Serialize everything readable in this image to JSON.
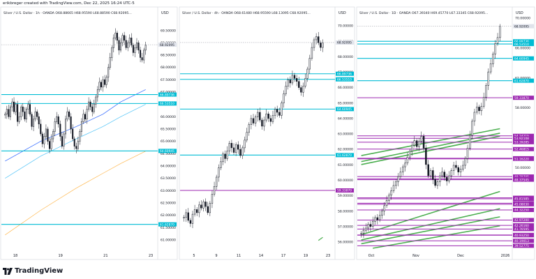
{
  "credit": "erikbreger created with TradingView.com, Dec 22, 2025 16:24 UTC-5",
  "brand": "TradingView",
  "colors": {
    "up": "#089981",
    "down": "#131722",
    "cyan": "#00bcd4",
    "purple": "#9c27b0",
    "green": "#4caf50",
    "blue_ma": "#2962ff",
    "lightblue_ma": "#4fc3f7",
    "orange_ma": "#ffb74d",
    "panel_border": "#d1d4dc"
  },
  "chart_data": [
    {
      "type": "candlestick",
      "header": "Silver / U.S. Dollar · 1h · OANDA  O68.88665  H68.95590  L68.88590  C68.92095…",
      "currency": "USD",
      "price_ticks": [
        "69.50000",
        "69.00000",
        "68.50000",
        "68.00000",
        "67.50000",
        "67.00000",
        "66.50000",
        "66.00000",
        "65.50000",
        "65.00000",
        "64.50000",
        "64.00000",
        "63.50000",
        "63.00000",
        "62.50000",
        "62.00000",
        "61.50000",
        "61.00000"
      ],
      "ylim": [
        60.6,
        70.0
      ],
      "x_ticks": [
        "18",
        "19",
        "21",
        "23"
      ],
      "last_price": {
        "label": "68.92095",
        "value": 68.92095
      },
      "levels": [
        {
          "label": "66.89736",
          "value": 66.89736,
          "color": "cyan"
        },
        {
          "label": "66.53510",
          "value": 66.5351,
          "color": "cyan"
        },
        {
          "label": "64.60945",
          "value": 64.60945,
          "color": "cyan"
        },
        {
          "label": "61.62870",
          "value": 61.6287,
          "color": "cyan"
        }
      ],
      "closes": [
        66.1,
        66.3,
        66.0,
        66.4,
        66.6,
        66.2,
        66.5,
        65.8,
        66.0,
        66.4,
        66.2,
        65.9,
        66.3,
        66.5,
        66.1,
        65.6,
        65.9,
        66.2,
        66.0,
        65.7,
        65.3,
        64.9,
        65.2,
        65.5,
        65.0,
        64.7,
        65.1,
        65.4,
        65.8,
        66.0,
        65.7,
        65.2,
        64.8,
        65.3,
        65.9,
        66.2,
        66.0,
        65.5,
        65.1,
        64.8,
        64.7,
        65.0,
        65.4,
        65.8,
        66.1,
        65.9,
        66.3,
        66.6,
        66.4,
        66.2,
        66.5,
        66.8,
        67.1,
        67.4,
        67.2,
        67.5,
        67.3,
        67.6,
        68.0,
        68.4,
        68.8,
        69.2,
        69.4,
        69.1,
        68.7,
        69.0,
        69.3,
        69.1,
        68.8,
        69.0,
        69.2,
        68.9,
        68.6,
        68.8,
        69.0,
        68.7,
        68.4,
        68.3,
        68.7,
        68.9
      ],
      "moving_averages": [
        {
          "name": "blue",
          "color": "blue_ma",
          "values": [
            [
              0,
              64.2
            ],
            [
              20,
              65.0
            ],
            [
              40,
              65.6
            ],
            [
              55,
              66.1
            ],
            [
              65,
              66.6
            ],
            [
              79,
              67.1
            ]
          ]
        },
        {
          "name": "lightblue",
          "color": "lightblue_ma",
          "values": [
            [
              0,
              63.5
            ],
            [
              20,
              64.4
            ],
            [
              40,
              65.1
            ],
            [
              55,
              65.6
            ],
            [
              65,
              66.0
            ],
            [
              79,
              66.5
            ]
          ]
        },
        {
          "name": "orange",
          "color": "orange_ma",
          "values": [
            [
              0,
              61.2
            ],
            [
              20,
              62.2
            ],
            [
              40,
              63.1
            ],
            [
              55,
              63.7
            ],
            [
              65,
              64.1
            ],
            [
              79,
              64.6
            ]
          ]
        }
      ]
    },
    {
      "type": "candlestick",
      "header": "Silver / U.S. Dollar · 4h · OANDA  O68.61480  H68.95590  L68.13095  C68.92095…",
      "currency": "USD",
      "price_ticks": [
        "70.00000",
        "69.00000",
        "68.00000",
        "67.00000",
        "66.00000",
        "65.00000",
        "64.00000",
        "63.00000",
        "62.00000",
        "61.00000",
        "60.00000",
        "59.00000",
        "58.00000",
        "57.00000",
        "56.00000"
      ],
      "ylim": [
        55.5,
        70.5
      ],
      "x_ticks": [
        "5",
        "9",
        "11",
        "14",
        "17",
        "19",
        "23"
      ],
      "last_price": {
        "label": "68.92095",
        "value": 68.92095
      },
      "levels": [
        {
          "label": "66.89736",
          "value": 66.89736,
          "color": "cyan"
        },
        {
          "label": "66.53510",
          "value": 66.5351,
          "color": "cyan"
        },
        {
          "label": "64.60945",
          "value": 64.60945,
          "color": "cyan"
        },
        {
          "label": "61.62870",
          "value": 61.6287,
          "color": "cyan"
        },
        {
          "label": "59.33870",
          "value": 59.3387,
          "color": "purple"
        }
      ],
      "closes": [
        57.6,
        57.9,
        57.4,
        57.2,
        57.8,
        58.1,
        57.9,
        58.4,
        58.2,
        58.6,
        58.3,
        57.9,
        58.5,
        59.1,
        59.6,
        60.2,
        60.8,
        61.2,
        61.7,
        61.4,
        61.9,
        62.4,
        62.1,
        61.8,
        62.3,
        62.0,
        61.6,
        62.1,
        62.6,
        63.1,
        63.6,
        64.0,
        63.7,
        64.1,
        64.4,
        63.9,
        63.5,
        63.9,
        64.3,
        64.0,
        63.8,
        64.2,
        64.6,
        64.4,
        64.2,
        65.0,
        65.6,
        66.1,
        66.5,
        66.3,
        66.8,
        66.6,
        66.4,
        66.0,
        65.7,
        66.1,
        66.6,
        67.2,
        67.9,
        68.6,
        69.1,
        69.3,
        68.9,
        68.6,
        68.9
      ],
      "trendline": [
        [
          62,
          56.1
        ],
        [
          64,
          56.3
        ]
      ]
    },
    {
      "type": "candlestick",
      "header": "Silver / U.S. Dollar · 1D · OANDA  O67.39340  H69.45770  L67.33345  C68.92095…",
      "currency": "USD",
      "price_ticks": [
        "70.00000",
        "66.00000",
        "62.00000",
        "58.00000",
        "54.00000",
        "50.00000",
        "46.00000",
        "42.00000",
        "38.00000",
        "34.00000"
      ],
      "ylim": [
        39.0,
        70.0
      ],
      "x_ticks": [
        "Oct",
        "Nov",
        "Dec",
        "2026"
      ],
      "last_price": {
        "label": "68.92095",
        "value": 68.92095
      },
      "levels": [
        {
          "label": "66.89736",
          "value": 66.89736,
          "color": "cyan"
        },
        {
          "label": "66.53510",
          "value": 66.5351,
          "color": "cyan"
        },
        {
          "label": "64.60945",
          "value": 64.60945,
          "color": "cyan"
        },
        {
          "label": "61.62870",
          "value": 61.6287,
          "color": "cyan"
        },
        {
          "label": "59.33870",
          "value": 59.3387,
          "color": "purple"
        },
        {
          "label": "54.24215",
          "value": 54.24215,
          "color": "purple"
        },
        {
          "label": "53.92108",
          "value": 53.92108,
          "color": "purple"
        },
        {
          "label": "53.39285",
          "value": 53.39285,
          "color": "purple"
        },
        {
          "label": "52.46815",
          "value": 52.46815,
          "color": "purple"
        },
        {
          "label": "51.24250",
          "value": 51.2425,
          "color": "purple"
        },
        {
          "label": "51.16220",
          "value": 51.1622,
          "color": "purple"
        },
        {
          "label": "48.79705",
          "value": 48.79705,
          "color": "purple"
        },
        {
          "label": "48.48885",
          "value": 48.48885,
          "color": "purple"
        },
        {
          "label": "48.37545",
          "value": 48.37545,
          "color": "purple"
        },
        {
          "label": "45.94810",
          "value": 45.9481,
          "color": "purple"
        },
        {
          "label": "45.81585",
          "value": 45.81585,
          "color": "purple"
        },
        {
          "label": "45.22585",
          "value": 45.22585,
          "color": "purple"
        },
        {
          "label": "45.08030",
          "value": 45.0803,
          "color": "purple"
        },
        {
          "label": "44.32250",
          "value": 44.3225,
          "color": "purple"
        },
        {
          "label": "42.97200",
          "value": 42.972,
          "color": "purple"
        },
        {
          "label": "42.26160",
          "value": 42.2616,
          "color": "purple"
        },
        {
          "label": "41.76595",
          "value": 41.76595,
          "color": "purple"
        },
        {
          "label": "40.97805",
          "value": 40.97805,
          "color": "purple"
        },
        {
          "label": "40.93250",
          "value": 40.9325,
          "color": "purple"
        },
        {
          "label": "40.19013",
          "value": 40.19013,
          "color": "purple"
        },
        {
          "label": "39.52775",
          "value": 39.52775,
          "color": "purple"
        }
      ],
      "closes": [
        41.2,
        41.6,
        41.9,
        42.4,
        42.1,
        42.8,
        43.3,
        43.0,
        43.6,
        44.2,
        44.9,
        45.6,
        46.3,
        46.9,
        47.6,
        48.1,
        48.8,
        49.4,
        50.1,
        50.6,
        51.4,
        52.2,
        53.0,
        53.6,
        52.8,
        53.5,
        54.2,
        52.6,
        50.4,
        48.9,
        49.6,
        48.4,
        47.6,
        48.1,
        48.9,
        49.4,
        48.7,
        48.2,
        48.9,
        49.6,
        50.3,
        50.0,
        49.4,
        49.8,
        50.3,
        51.2,
        52.6,
        54.3,
        56.2,
        57.4,
        58.1,
        57.6,
        58.2,
        59.4,
        61.0,
        62.8,
        63.9,
        65.2,
        66.6,
        67.4,
        68.9
      ],
      "trendlines": [
        [
          [
            0,
            51.6
          ],
          [
            60,
            55.2
          ]
        ],
        [
          [
            0,
            50.4
          ],
          [
            60,
            54.2
          ]
        ],
        [
          [
            0,
            50.8
          ],
          [
            60,
            54.6
          ]
        ],
        [
          [
            0,
            41.0
          ],
          [
            60,
            46.8
          ]
        ],
        [
          [
            0,
            40.3
          ],
          [
            60,
            44.5
          ]
        ],
        [
          [
            0,
            39.8
          ],
          [
            60,
            43.4
          ]
        ],
        [
          [
            5,
            39.2
          ],
          [
            60,
            42.2
          ]
        ]
      ]
    }
  ]
}
